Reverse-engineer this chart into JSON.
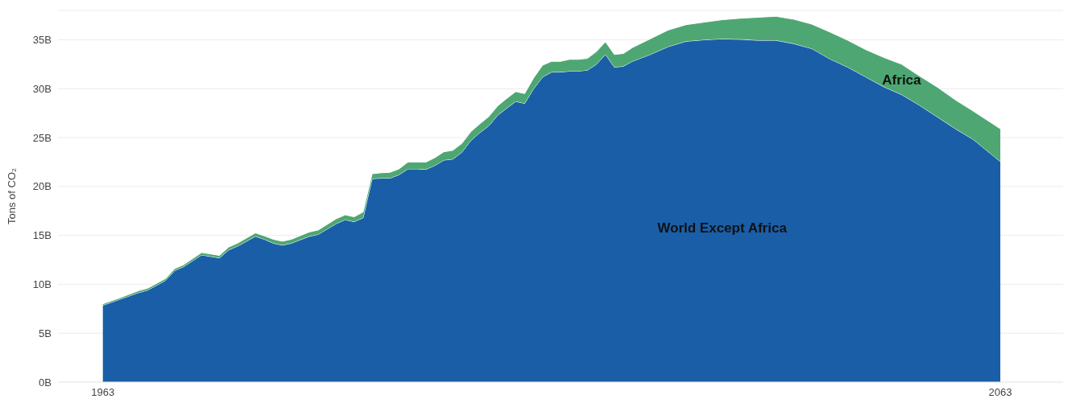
{
  "chart_data": {
    "type": "area",
    "stacked": true,
    "ylabel": "Tons of CO₂",
    "x": [
      1963,
      1965,
      1967,
      1968,
      1970,
      1971,
      1972,
      1974,
      1976,
      1977,
      1978,
      1980,
      1981,
      1982,
      1983,
      1984,
      1986,
      1987,
      1989,
      1990,
      1991,
      1992,
      1993,
      1994,
      1995,
      1996,
      1997,
      1998,
      1999,
      2000,
      2001,
      2002,
      2003,
      2004,
      2005,
      2006,
      2007,
      2008,
      2009,
      2010,
      2011,
      2012,
      2013,
      2014,
      2015,
      2016,
      2017,
      2018,
      2019,
      2020,
      2021,
      2022,
      2024,
      2026,
      2028,
      2030,
      2032,
      2034,
      2036,
      2038,
      2040,
      2042,
      2044,
      2046,
      2048,
      2050,
      2052,
      2054,
      2056,
      2058,
      2060,
      2062,
      2063
    ],
    "series": [
      {
        "name": "World Except Africa",
        "color": "#1a5ea8",
        "values": [
          7.85,
          8.5,
          9.15,
          9.4,
          10.4,
          11.4,
          11.8,
          13.0,
          12.7,
          13.5,
          13.9,
          14.9,
          14.6,
          14.2,
          14.0,
          14.2,
          14.9,
          15.1,
          16.2,
          16.6,
          16.4,
          16.8,
          20.8,
          20.85,
          20.85,
          21.2,
          21.8,
          21.8,
          21.75,
          22.15,
          22.7,
          22.8,
          23.5,
          24.7,
          25.5,
          26.2,
          27.3,
          28.0,
          28.7,
          28.5,
          30.0,
          31.2,
          31.7,
          31.7,
          31.8,
          31.8,
          31.9,
          32.5,
          33.5,
          32.2,
          32.3,
          32.8,
          33.5,
          34.3,
          34.85,
          35.0,
          35.1,
          35.05,
          34.95,
          34.95,
          34.6,
          34.1,
          33.05,
          32.2,
          31.2,
          30.2,
          29.4,
          28.3,
          27.1,
          25.9,
          24.8,
          23.3,
          22.55
        ]
      },
      {
        "name": "Africa",
        "color": "#4ea772",
        "values": [
          0.15,
          0.15,
          0.2,
          0.2,
          0.2,
          0.2,
          0.2,
          0.25,
          0.25,
          0.3,
          0.3,
          0.35,
          0.35,
          0.4,
          0.4,
          0.4,
          0.45,
          0.45,
          0.5,
          0.5,
          0.5,
          0.6,
          0.5,
          0.55,
          0.6,
          0.6,
          0.7,
          0.7,
          0.75,
          0.8,
          0.85,
          0.9,
          0.9,
          0.9,
          0.9,
          0.95,
          0.95,
          1.0,
          1.0,
          1.0,
          1.1,
          1.2,
          1.1,
          1.1,
          1.2,
          1.2,
          1.2,
          1.3,
          1.3,
          1.3,
          1.3,
          1.4,
          1.6,
          1.7,
          1.7,
          1.8,
          1.95,
          2.15,
          2.35,
          2.45,
          2.5,
          2.5,
          2.75,
          2.75,
          2.8,
          3.0,
          3.1,
          3.0,
          3.05,
          2.95,
          2.9,
          3.2,
          3.35
        ]
      }
    ],
    "xlim": [
      1958,
      2070
    ],
    "xticks": [
      1963,
      2063
    ],
    "ylim": [
      0,
      38
    ],
    "yticks": [
      {
        "value": 0,
        "label": "0B"
      },
      {
        "value": 5,
        "label": "5B"
      },
      {
        "value": 10,
        "label": "10B"
      },
      {
        "value": 15,
        "label": "15B"
      },
      {
        "value": 20,
        "label": "20B"
      },
      {
        "value": 25,
        "label": "25B"
      },
      {
        "value": 30,
        "label": "30B"
      },
      {
        "value": 35,
        "label": "35B"
      }
    ],
    "grid": "y",
    "legend": false
  }
}
